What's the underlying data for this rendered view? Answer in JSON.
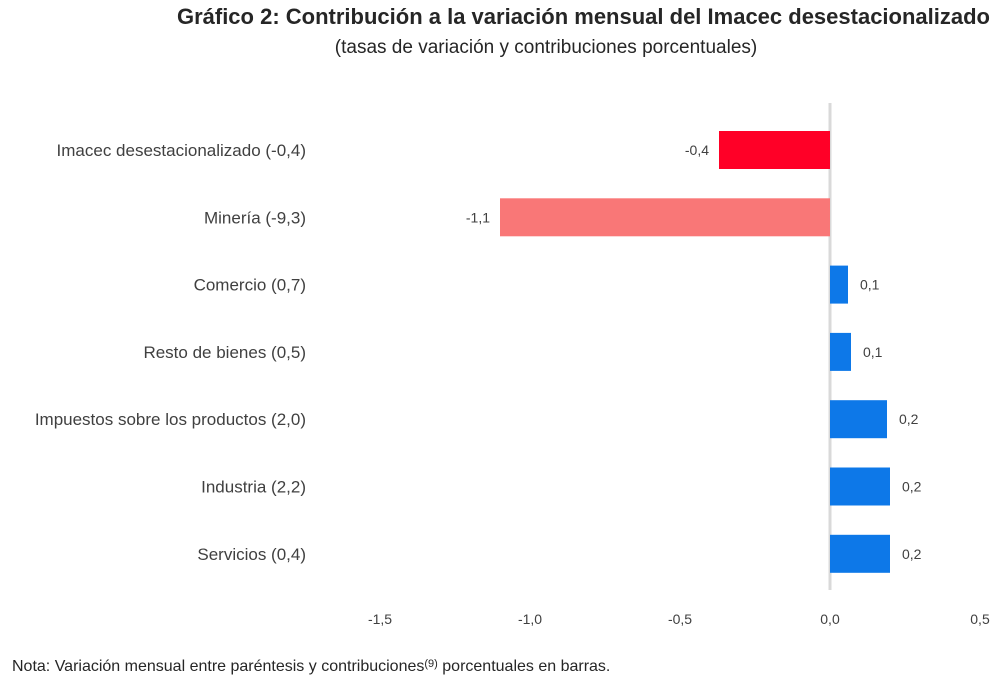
{
  "chart_data": {
    "type": "bar",
    "orientation": "horizontal",
    "title": "Gráfico 2: Contribución a la variación mensual del Imacec desestacionalizado",
    "subtitle": "(tasas de variación y contribuciones porcentuales)",
    "categories": [
      "Imacec desestacionalizado (-0,4)",
      "Minería (-9,3)",
      "Comercio (0,7)",
      "Resto de bienes (0,5)",
      "Impuestos sobre los productos (2,0)",
      "Industria (2,2)",
      "Servicios (0,4)"
    ],
    "values": [
      -0.37,
      -1.1,
      0.06,
      0.07,
      0.19,
      0.2,
      0.2
    ],
    "data_labels": [
      "-0,4",
      "-1,1",
      "0,1",
      "0,1",
      "0,2",
      "0,2",
      "0,2"
    ],
    "bar_colors": [
      "#ff0027",
      "#f97777",
      "#0d78e8",
      "#0d78e8",
      "#0d78e8",
      "#0d78e8",
      "#0d78e8"
    ],
    "xlim": [
      -1.5,
      0.5
    ],
    "xticks": [
      -1.5,
      -1.0,
      -0.5,
      0.0,
      0.5
    ],
    "xtick_labels": [
      "-1,5",
      "-1,0",
      "-0,5",
      "0,0",
      "0,5"
    ],
    "xlabel": "",
    "ylabel": "",
    "grid": false,
    "zero_line_color": "#d9d9d9"
  },
  "note": {
    "text_before": "Nota: Variación mensual entre paréntesis y contribuciones",
    "superscript": "(9)",
    "text_after": " porcentuales en barras."
  }
}
